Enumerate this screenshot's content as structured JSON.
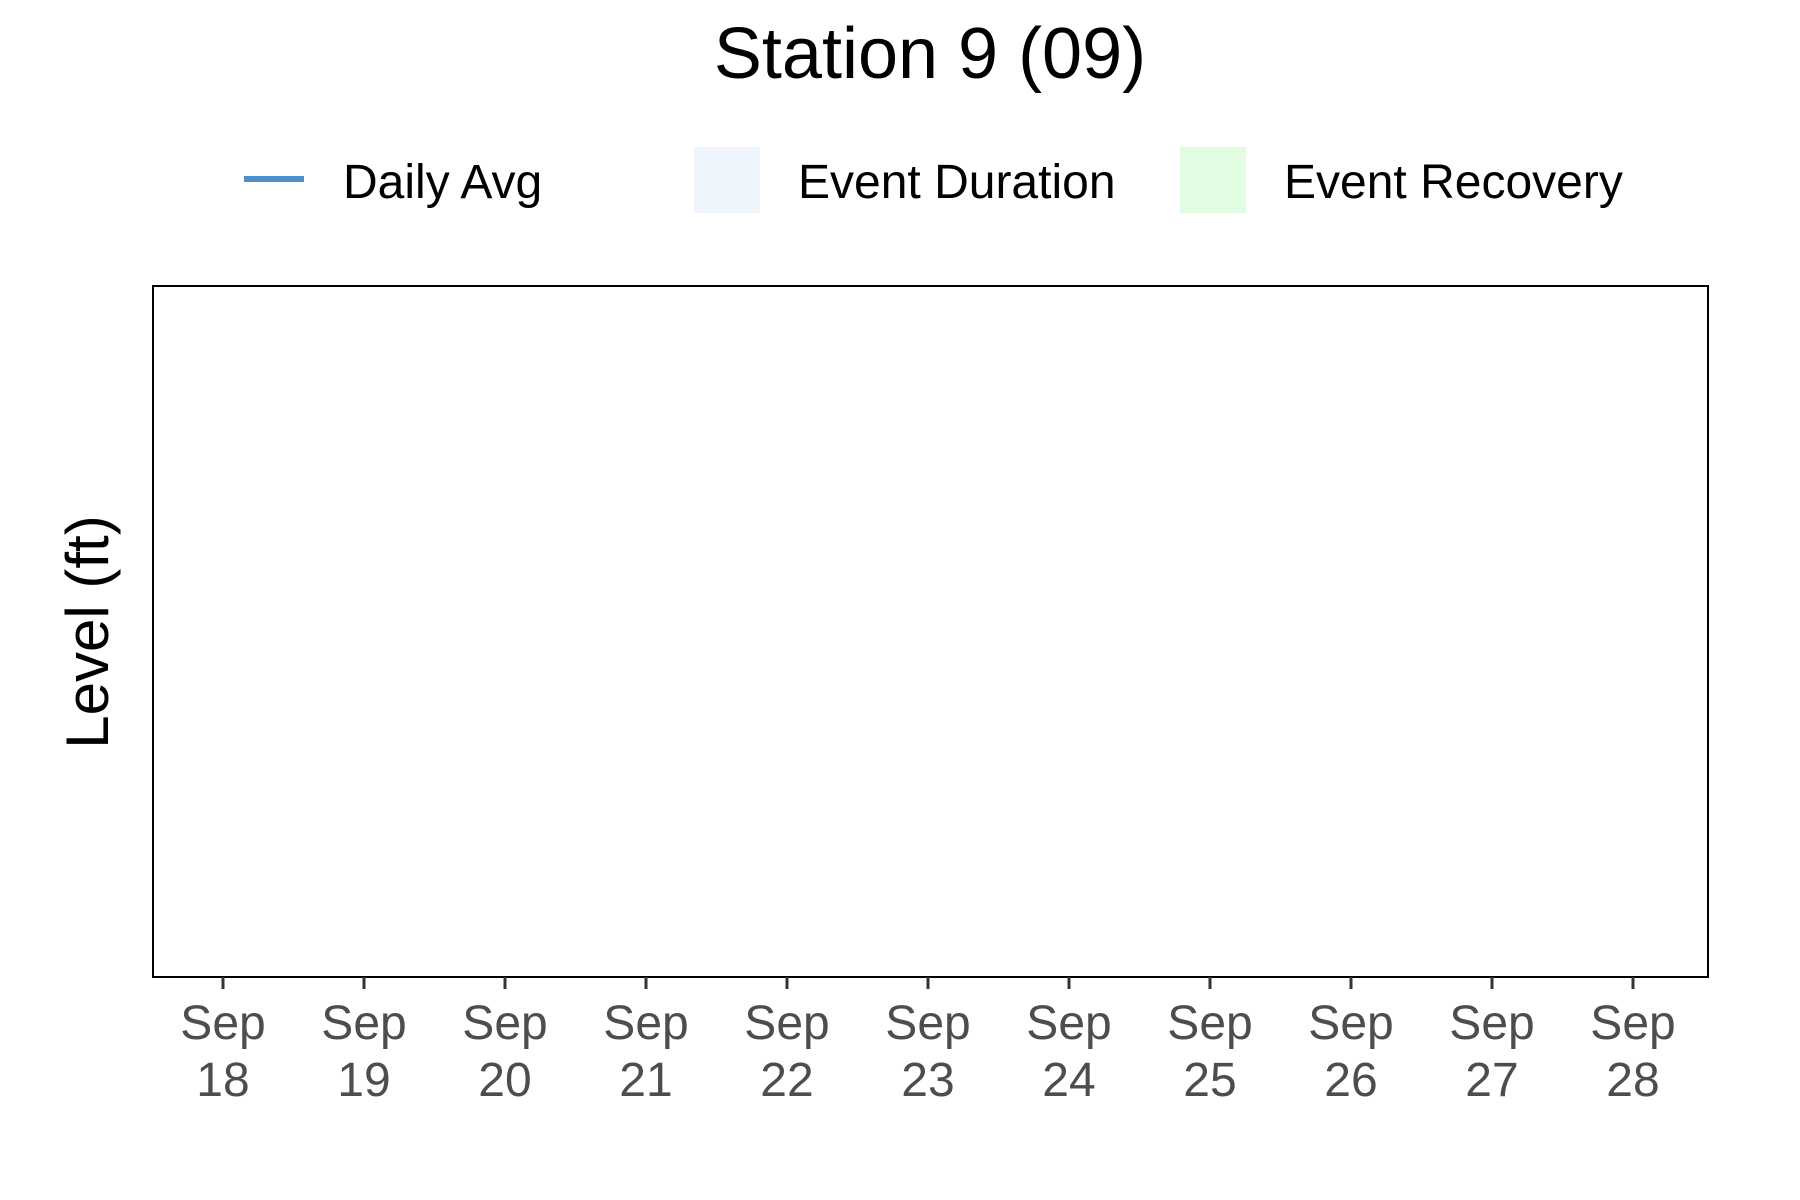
{
  "chart_data": {
    "type": "line",
    "title": "Station 9 (09)",
    "xlabel": "",
    "ylabel": "Level (ft)",
    "x_ticks": [
      {
        "month": "Sep",
        "day": "18"
      },
      {
        "month": "Sep",
        "day": "19"
      },
      {
        "month": "Sep",
        "day": "20"
      },
      {
        "month": "Sep",
        "day": "21"
      },
      {
        "month": "Sep",
        "day": "22"
      },
      {
        "month": "Sep",
        "day": "23"
      },
      {
        "month": "Sep",
        "day": "24"
      },
      {
        "month": "Sep",
        "day": "25"
      },
      {
        "month": "Sep",
        "day": "26"
      },
      {
        "month": "Sep",
        "day": "27"
      },
      {
        "month": "Sep",
        "day": "28"
      }
    ],
    "series": [
      {
        "name": "Daily Avg",
        "color": "#4e8fcb",
        "values": []
      }
    ],
    "legend": {
      "position": "top",
      "items": [
        {
          "label": "Daily Avg",
          "kind": "line",
          "color": "#4e8fcb"
        },
        {
          "label": "Event Duration",
          "kind": "fill",
          "color": "#edf4fc"
        },
        {
          "label": "Event Recovery",
          "kind": "fill",
          "color": "#e3fde3"
        }
      ]
    },
    "grid": false
  }
}
